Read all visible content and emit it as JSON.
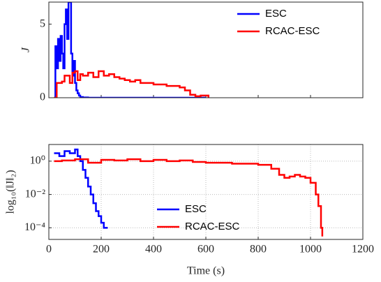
{
  "chart_data": [
    {
      "type": "line",
      "ylabel": "J",
      "xlim": [
        0,
        1200
      ],
      "xticks": [
        0,
        200,
        400,
        600,
        800,
        1000,
        1200
      ],
      "xtick_labels": false,
      "ylim": [
        0,
        6.5
      ],
      "yticks": [
        0,
        5
      ],
      "legend": "upper right",
      "series": [
        {
          "name": "ESC",
          "color": "#0000ff",
          "x": [
            20,
            25,
            30,
            35,
            40,
            45,
            50,
            55,
            60,
            65,
            70,
            75,
            80,
            85,
            90,
            95,
            100,
            105,
            110,
            115,
            120,
            130,
            150,
            200,
            300,
            600
          ],
          "values": [
            0,
            3.5,
            2,
            4,
            2.5,
            4.2,
            3,
            2,
            5,
            6,
            4,
            6.5,
            6.5,
            3,
            1.5,
            2.5,
            1,
            0.5,
            0.3,
            0.15,
            0.05,
            0.02,
            0,
            0,
            0,
            0
          ]
        },
        {
          "name": "RCAC-ESC",
          "color": "#ff0000",
          "x": [
            20,
            30,
            50,
            60,
            80,
            90,
            100,
            110,
            120,
            130,
            150,
            170,
            190,
            210,
            230,
            250,
            270,
            290,
            310,
            330,
            350,
            400,
            450,
            500,
            520,
            540,
            560,
            580,
            600,
            610
          ],
          "values": [
            0,
            1,
            1.1,
            1.5,
            1.0,
            1.7,
            1.8,
            1.2,
            1.6,
            1.5,
            1.7,
            1.4,
            1.8,
            1.5,
            1.6,
            1.4,
            1.3,
            1.2,
            1.1,
            1.2,
            1.0,
            0.9,
            0.8,
            0.7,
            0.5,
            0.2,
            0.1,
            0.15,
            0.15,
            0
          ]
        }
      ]
    },
    {
      "type": "line",
      "xlabel": "Time (s)",
      "ylabel": "log₁₀(‖J‖₂)",
      "xlim": [
        0,
        1200
      ],
      "xticks": [
        0,
        200,
        400,
        600,
        800,
        1000,
        1200
      ],
      "ylim": [
        2e-05,
        10
      ],
      "log_y": true,
      "grid": true,
      "legend": "lower center",
      "yticks": [
        {
          "value": 0.0001,
          "label": "10⁻⁴"
        },
        {
          "value": 0.01,
          "label": "10⁻²"
        },
        {
          "value": 1,
          "label": "10⁰"
        }
      ],
      "series": [
        {
          "name": "ESC",
          "color": "#0000ff",
          "x": [
            20,
            40,
            60,
            80,
            100,
            110,
            120,
            130,
            140,
            150,
            160,
            170,
            180,
            190,
            200,
            210,
            220,
            225
          ],
          "values": [
            3,
            2,
            4,
            3,
            5,
            2,
            1,
            0.3,
            0.1,
            0.03,
            0.01,
            0.003,
            0.001,
            0.0005,
            0.0002,
            0.0001,
            0.0001,
            0.0001
          ]
        },
        {
          "name": "RCAC-ESC",
          "color": "#ff0000",
          "x": [
            20,
            50,
            100,
            150,
            200,
            250,
            300,
            350,
            400,
            450,
            500,
            550,
            600,
            650,
            700,
            750,
            800,
            850,
            880,
            900,
            920,
            940,
            960,
            980,
            1000,
            1020,
            1030,
            1040,
            1045
          ],
          "values": [
            1,
            1.1,
            1.3,
            0.8,
            1.2,
            1.1,
            1.3,
            1.0,
            1.2,
            1.0,
            1.1,
            0.9,
            0.8,
            0.8,
            0.7,
            0.7,
            0.6,
            0.35,
            0.15,
            0.1,
            0.12,
            0.15,
            0.12,
            0.1,
            0.05,
            0.01,
            0.002,
            0.0001,
            3e-05
          ]
        }
      ]
    }
  ]
}
